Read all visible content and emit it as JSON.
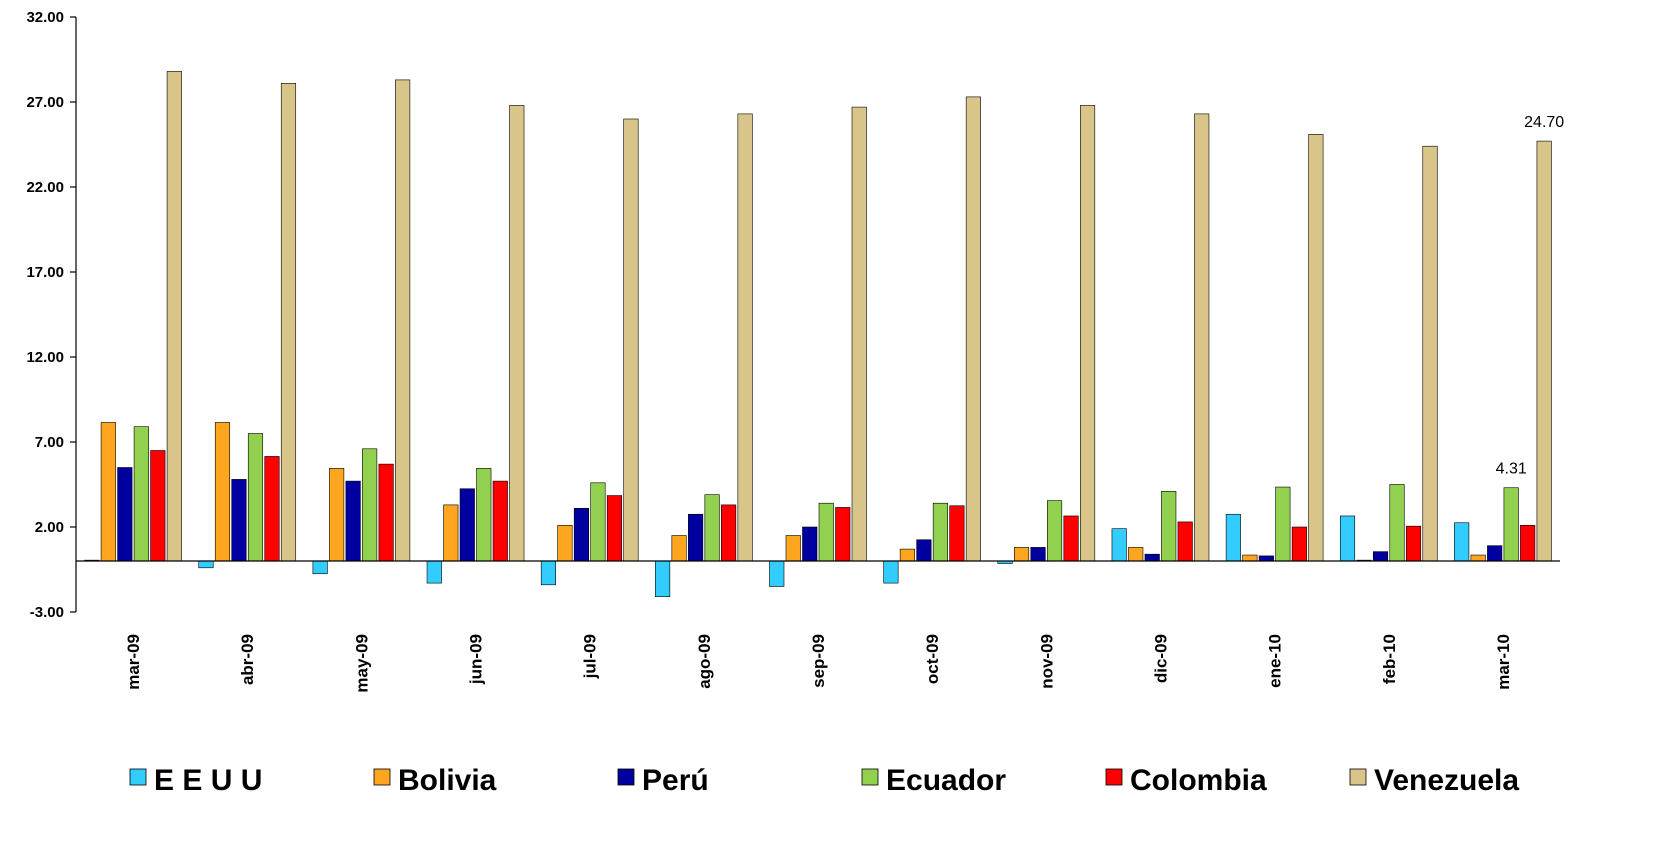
{
  "chart_data": {
    "type": "bar",
    "title": "",
    "xlabel": "",
    "ylabel": "",
    "ylim": [
      -3,
      32
    ],
    "yticks": [
      -3,
      2,
      7,
      12,
      17,
      22,
      27,
      32
    ],
    "ytick_labels": [
      "-3.00",
      "2.00",
      "7.00",
      "12.00",
      "17.00",
      "22.00",
      "27.00",
      "32.00"
    ],
    "grid": false,
    "legend_position": "bottom",
    "categories": [
      "mar-09",
      "abr-09",
      "may-09",
      "jun-09",
      "jul-09",
      "ago-09",
      "sep-09",
      "oct-09",
      "nov-09",
      "dic-09",
      "ene-10",
      "feb-10",
      "mar-10"
    ],
    "series": [
      {
        "name": "E E U U",
        "color": "#33CCFF",
        "values": [
          0.05,
          -0.4,
          -0.75,
          -1.3,
          -1.4,
          -2.1,
          -1.5,
          -1.3,
          -0.15,
          1.9,
          2.75,
          2.65,
          2.25
        ]
      },
      {
        "name": "Bolivia",
        "color": "#FFA51F",
        "values": [
          8.15,
          8.15,
          5.45,
          3.3,
          2.1,
          1.5,
          1.5,
          0.7,
          0.8,
          0.8,
          0.35,
          0.05,
          0.35
        ]
      },
      {
        "name": "Perú",
        "color": "#0000A0",
        "values": [
          5.5,
          4.8,
          4.7,
          4.25,
          3.1,
          2.75,
          2.0,
          1.25,
          0.8,
          0.4,
          0.3,
          0.55,
          0.9
        ]
      },
      {
        "name": "Ecuador",
        "color": "#92D050",
        "values": [
          7.9,
          7.5,
          6.6,
          5.45,
          4.6,
          3.9,
          3.4,
          3.4,
          3.55,
          4.1,
          4.35,
          4.5,
          4.31
        ]
      },
      {
        "name": "Colombia",
        "color": "#FF0000",
        "values": [
          6.5,
          6.15,
          5.7,
          4.7,
          3.85,
          3.3,
          3.15,
          3.25,
          2.65,
          2.3,
          2.0,
          2.05,
          2.1
        ]
      },
      {
        "name": "Venezuela",
        "color": "#D9C48A",
        "values": [
          28.8,
          28.1,
          28.3,
          26.8,
          26.0,
          26.3,
          26.7,
          27.3,
          26.8,
          26.3,
          25.1,
          24.4,
          24.7
        ]
      }
    ],
    "annotations": [
      {
        "category": "mar-10",
        "series": "Ecuador",
        "text": "4.31"
      },
      {
        "category": "mar-10",
        "series": "Venezuela",
        "text": "24.70"
      }
    ]
  }
}
